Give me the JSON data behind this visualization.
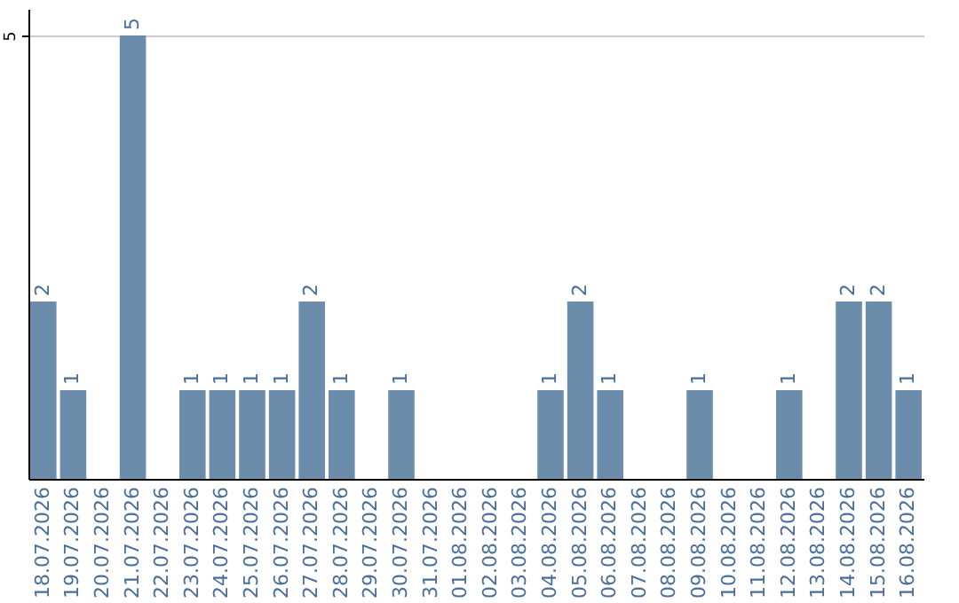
{
  "chart_data": {
    "type": "bar",
    "categories": [
      "18.07.2026",
      "19.07.2026",
      "20.07.2026",
      "21.07.2026",
      "22.07.2026",
      "23.07.2026",
      "24.07.2026",
      "25.07.2026",
      "26.07.2026",
      "27.07.2026",
      "28.07.2026",
      "29.07.2026",
      "30.07.2026",
      "31.07.2026",
      "01.08.2026",
      "02.08.2026",
      "03.08.2026",
      "04.08.2026",
      "05.08.2026",
      "06.08.2026",
      "07.08.2026",
      "08.08.2026",
      "09.08.2026",
      "10.08.2026",
      "11.08.2026",
      "12.08.2026",
      "13.08.2026",
      "14.08.2026",
      "15.08.2026",
      "16.08.2026"
    ],
    "values": [
      2,
      1,
      0,
      5,
      0,
      1,
      1,
      1,
      1,
      2,
      1,
      0,
      1,
      0,
      0,
      0,
      0,
      1,
      2,
      1,
      0,
      0,
      1,
      0,
      0,
      1,
      0,
      2,
      2,
      1
    ],
    "value_labels": [
      "2",
      "1",
      null,
      "5",
      null,
      "1",
      "1",
      "1",
      "1",
      "2",
      "1",
      null,
      "1",
      null,
      null,
      null,
      null,
      "1",
      "2",
      "1",
      null,
      null,
      "1",
      null,
      null,
      "1",
      null,
      "2",
      "2",
      "1"
    ],
    "color": "#6b8cab",
    "ylim": [
      0,
      5.3
    ],
    "yticks": [
      5
    ],
    "grid": "y"
  }
}
